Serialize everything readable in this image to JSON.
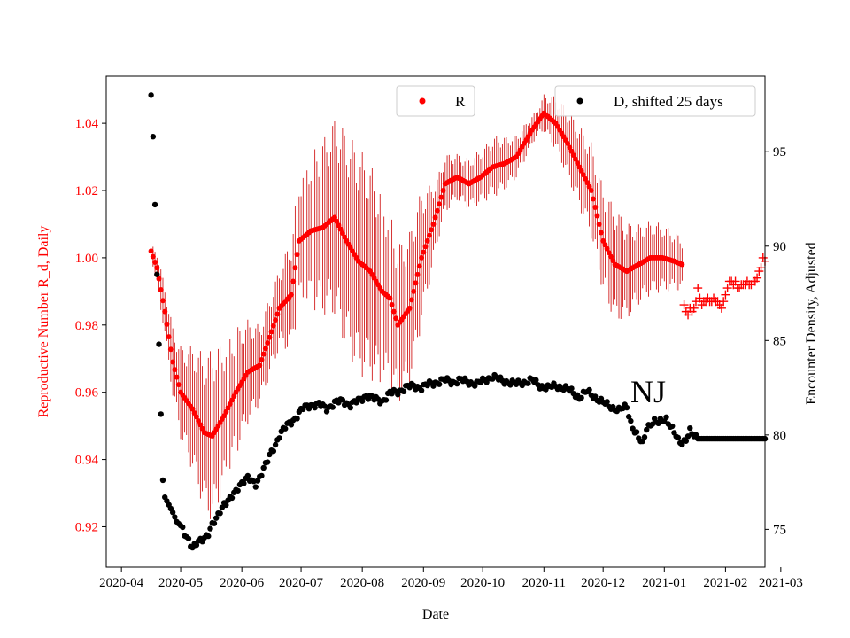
{
  "chart_data": {
    "type": "scatter",
    "annotation": "NJ",
    "xlabel": "Date",
    "ylabel_left": "Reproductive Number R_d, Daily",
    "ylabel_right": "Encounter Density, Adjusted",
    "x_ticks": [
      "2020-04",
      "2020-05",
      "2020-06",
      "2020-07",
      "2020-08",
      "2020-09",
      "2020-10",
      "2020-11",
      "2020-12",
      "2021-01",
      "2021-02",
      "2021-03"
    ],
    "y_left_ticks": [
      "0.92",
      "0.94",
      "0.96",
      "0.98",
      "1.00",
      "1.02",
      "1.04"
    ],
    "y_right_ticks": [
      "75",
      "80",
      "85",
      "90",
      "95"
    ],
    "ylim_left": [
      0.908,
      1.054
    ],
    "ylim_right": [
      73.0,
      99.0
    ],
    "x_range_days": [
      -7.7,
      326.0
    ],
    "x_origin_date": "2020-04-01",
    "colors": {
      "R": "#ff0000",
      "R_err": "#cc0000",
      "D": "#000000"
    },
    "legend_R": {
      "label": "R",
      "marker": "red-dot-icon"
    },
    "legend_D": {
      "label": "D, shifted 25 days",
      "marker": "black-dot-icon"
    },
    "series_R": {
      "name": "R",
      "day_start": 15,
      "mean_keys": [
        [
          15,
          1.002
        ],
        [
          18,
          0.997
        ],
        [
          22,
          0.984
        ],
        [
          26,
          0.969
        ],
        [
          30,
          0.96
        ],
        [
          36,
          0.955
        ],
        [
          42,
          0.948
        ],
        [
          46,
          0.947
        ],
        [
          52,
          0.953
        ],
        [
          58,
          0.96
        ],
        [
          64,
          0.966
        ],
        [
          70,
          0.968
        ],
        [
          76,
          0.978
        ],
        [
          80,
          0.985
        ],
        [
          86,
          0.989
        ],
        [
          90,
          1.005
        ],
        [
          96,
          1.008
        ],
        [
          102,
          1.009
        ],
        [
          108,
          1.012
        ],
        [
          114,
          1.005
        ],
        [
          120,
          0.999
        ],
        [
          126,
          0.996
        ],
        [
          132,
          0.99
        ],
        [
          136,
          0.988
        ],
        [
          140,
          0.98
        ],
        [
          146,
          0.985
        ],
        [
          152,
          1.0
        ],
        [
          158,
          1.01
        ],
        [
          164,
          1.022
        ],
        [
          170,
          1.024
        ],
        [
          176,
          1.022
        ],
        [
          182,
          1.024
        ],
        [
          188,
          1.027
        ],
        [
          194,
          1.028
        ],
        [
          200,
          1.03
        ],
        [
          208,
          1.038
        ],
        [
          214,
          1.043
        ],
        [
          220,
          1.04
        ],
        [
          226,
          1.034
        ],
        [
          232,
          1.027
        ],
        [
          238,
          1.02
        ],
        [
          244,
          1.005
        ],
        [
          250,
          0.998
        ],
        [
          256,
          0.996
        ],
        [
          262,
          0.998
        ],
        [
          268,
          1.0
        ],
        [
          274,
          1.0
        ],
        [
          280,
          0.999
        ],
        [
          284,
          0.998
        ]
      ],
      "err_keys": [
        [
          15,
          0.002
        ],
        [
          18,
          0.005
        ],
        [
          24,
          0.009
        ],
        [
          30,
          0.014
        ],
        [
          40,
          0.022
        ],
        [
          46,
          0.026
        ],
        [
          52,
          0.022
        ],
        [
          60,
          0.018
        ],
        [
          70,
          0.012
        ],
        [
          80,
          0.012
        ],
        [
          90,
          0.02
        ],
        [
          100,
          0.025
        ],
        [
          112,
          0.032
        ],
        [
          120,
          0.034
        ],
        [
          132,
          0.03
        ],
        [
          140,
          0.024
        ],
        [
          150,
          0.022
        ],
        [
          160,
          0.01
        ],
        [
          170,
          0.007
        ],
        [
          190,
          0.009
        ],
        [
          210,
          0.004
        ],
        [
          225,
          0.01
        ],
        [
          240,
          0.015
        ],
        [
          250,
          0.017
        ],
        [
          262,
          0.012
        ],
        [
          275,
          0.01
        ],
        [
          284,
          0.008
        ]
      ],
      "plus_markers": [
        [
          285,
          0.986
        ],
        [
          286,
          0.984
        ],
        [
          287,
          0.983
        ],
        [
          288,
          0.985
        ],
        [
          289,
          0.984
        ],
        [
          290,
          0.985
        ],
        [
          291,
          0.987
        ],
        [
          292,
          0.991
        ],
        [
          293,
          0.988
        ],
        [
          294,
          0.986
        ],
        [
          295,
          0.987
        ],
        [
          296,
          0.987
        ],
        [
          297,
          0.988
        ],
        [
          298,
          0.987
        ],
        [
          299,
          0.987
        ],
        [
          300,
          0.988
        ],
        [
          301,
          0.987
        ],
        [
          302,
          0.987
        ],
        [
          303,
          0.986
        ],
        [
          304,
          0.985
        ],
        [
          305,
          0.987
        ],
        [
          306,
          0.989
        ],
        [
          307,
          0.991
        ],
        [
          308,
          0.993
        ],
        [
          309,
          0.993
        ],
        [
          310,
          0.992
        ],
        [
          311,
          0.993
        ],
        [
          312,
          0.991
        ],
        [
          313,
          0.991
        ],
        [
          314,
          0.992
        ],
        [
          315,
          0.992
        ],
        [
          316,
          0.992
        ],
        [
          317,
          0.993
        ],
        [
          318,
          0.992
        ],
        [
          319,
          0.992
        ],
        [
          320,
          0.993
        ],
        [
          321,
          0.993
        ],
        [
          322,
          0.994
        ],
        [
          323,
          0.996
        ],
        [
          324,
          0.997
        ],
        [
          325,
          1.0
        ],
        [
          326,
          0.999
        ]
      ]
    },
    "series_D": {
      "name": "D, shifted 25 days",
      "keys": [
        [
          15,
          98.0
        ],
        [
          16,
          95.8
        ],
        [
          17,
          92.2
        ],
        [
          18,
          88.5
        ],
        [
          19,
          84.8
        ],
        [
          20,
          81.1
        ],
        [
          21,
          77.6
        ],
        [
          22,
          76.7
        ],
        [
          24,
          76.3
        ],
        [
          26,
          75.9
        ],
        [
          28,
          75.4
        ],
        [
          30,
          75.2
        ],
        [
          32,
          74.8
        ],
        [
          34,
          74.5
        ],
        [
          36,
          74.0
        ],
        [
          38,
          74.2
        ],
        [
          40,
          74.4
        ],
        [
          42,
          74.6
        ],
        [
          44,
          74.8
        ],
        [
          46,
          75.2
        ],
        [
          48,
          75.5
        ],
        [
          50,
          76.0
        ],
        [
          52,
          76.4
        ],
        [
          54,
          76.5
        ],
        [
          56,
          76.7
        ],
        [
          58,
          77.0
        ],
        [
          60,
          77.4
        ],
        [
          62,
          77.6
        ],
        [
          64,
          77.7
        ],
        [
          66,
          77.5
        ],
        [
          68,
          77.4
        ],
        [
          70,
          77.8
        ],
        [
          72,
          78.2
        ],
        [
          74,
          78.6
        ],
        [
          76,
          79.1
        ],
        [
          78,
          79.5
        ],
        [
          80,
          80.0
        ],
        [
          84,
          80.5
        ],
        [
          88,
          80.9
        ],
        [
          92,
          81.4
        ],
        [
          96,
          81.6
        ],
        [
          100,
          81.6
        ],
        [
          104,
          81.4
        ],
        [
          108,
          81.7
        ],
        [
          112,
          81.8
        ],
        [
          116,
          81.6
        ],
        [
          120,
          81.8
        ],
        [
          124,
          82.1
        ],
        [
          128,
          81.9
        ],
        [
          132,
          81.8
        ],
        [
          136,
          82.2
        ],
        [
          140,
          82.3
        ],
        [
          144,
          82.5
        ],
        [
          148,
          82.6
        ],
        [
          152,
          82.5
        ],
        [
          156,
          82.7
        ],
        [
          160,
          82.8
        ],
        [
          164,
          82.9
        ],
        [
          168,
          82.8
        ],
        [
          172,
          82.9
        ],
        [
          176,
          82.8
        ],
        [
          180,
          82.7
        ],
        [
          184,
          82.9
        ],
        [
          188,
          83.1
        ],
        [
          192,
          82.9
        ],
        [
          196,
          82.8
        ],
        [
          200,
          82.7
        ],
        [
          204,
          82.8
        ],
        [
          208,
          82.9
        ],
        [
          212,
          82.6
        ],
        [
          216,
          82.5
        ],
        [
          220,
          82.6
        ],
        [
          224,
          82.5
        ],
        [
          228,
          82.3
        ],
        [
          232,
          82.0
        ],
        [
          236,
          82.3
        ],
        [
          240,
          82.0
        ],
        [
          244,
          81.7
        ],
        [
          248,
          81.5
        ],
        [
          252,
          81.3
        ],
        [
          256,
          81.5
        ],
        [
          258,
          80.7
        ],
        [
          260,
          80.2
        ],
        [
          262,
          79.8
        ],
        [
          264,
          79.5
        ],
        [
          266,
          80.4
        ],
        [
          268,
          80.6
        ],
        [
          270,
          80.7
        ],
        [
          272,
          80.6
        ],
        [
          274,
          80.8
        ],
        [
          276,
          80.9
        ],
        [
          278,
          80.5
        ],
        [
          280,
          80.1
        ],
        [
          282,
          79.7
        ],
        [
          284,
          79.6
        ],
        [
          286,
          79.8
        ],
        [
          288,
          80.2
        ],
        [
          290,
          79.9
        ],
        [
          292,
          79.8
        ],
        [
          326,
          79.8
        ]
      ]
    }
  }
}
